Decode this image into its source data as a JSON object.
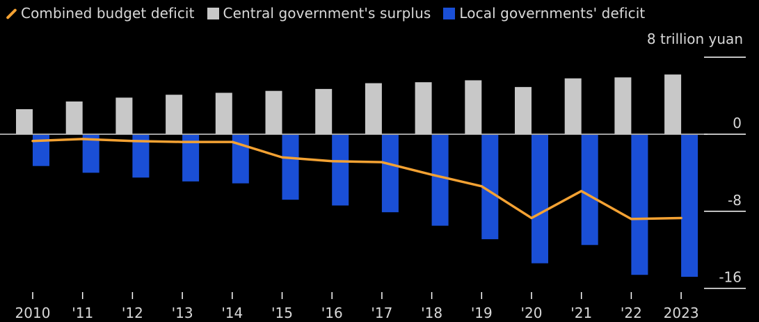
{
  "legend": {
    "line_label": "Combined budget deficit",
    "surplus_label": "Central government's surplus",
    "deficit_label": "Local governments' deficit"
  },
  "unit_label": "8 trillion yuan",
  "colors": {
    "background": "#000000",
    "surplus": "#c8c8c8",
    "deficit": "#1a4fd6",
    "line": "#f4a233",
    "axis_text": "#d9d9d9",
    "grid": "#ffffff"
  },
  "chart_data": {
    "type": "bar",
    "categories": [
      "2010",
      "'11",
      "'12",
      "'13",
      "'14",
      "'15",
      "'16",
      "'17",
      "'18",
      "'19",
      "'20",
      "'21",
      "'22",
      "2023"
    ],
    "series": [
      {
        "name": "Central government's surplus",
        "type": "bar",
        "values": [
          2.6,
          3.4,
          3.8,
          4.1,
          4.3,
          4.5,
          4.7,
          5.3,
          5.4,
          5.6,
          4.9,
          5.8,
          5.9,
          6.2
        ]
      },
      {
        "name": "Local governments' deficit",
        "type": "bar",
        "values": [
          -3.3,
          -4.0,
          -4.5,
          -4.9,
          -5.1,
          -6.8,
          -7.4,
          -8.1,
          -9.5,
          -10.9,
          -13.4,
          -11.5,
          -14.6,
          -14.8
        ]
      },
      {
        "name": "Combined budget deficit",
        "type": "line",
        "values": [
          -0.7,
          -0.5,
          -0.7,
          -0.8,
          -0.8,
          -2.4,
          -2.8,
          -2.9,
          -4.2,
          -5.4,
          -8.7,
          -5.9,
          -8.8,
          -8.7
        ]
      }
    ],
    "yticks": [
      {
        "value": 8,
        "label": ""
      },
      {
        "value": 0,
        "label": "0"
      },
      {
        "value": -8,
        "label": "-8"
      },
      {
        "value": -16,
        "label": "-16"
      }
    ],
    "ylim": [
      -17,
      9
    ],
    "xlabel": "",
    "ylabel": "",
    "grid": false,
    "legend_position": "top-left"
  }
}
